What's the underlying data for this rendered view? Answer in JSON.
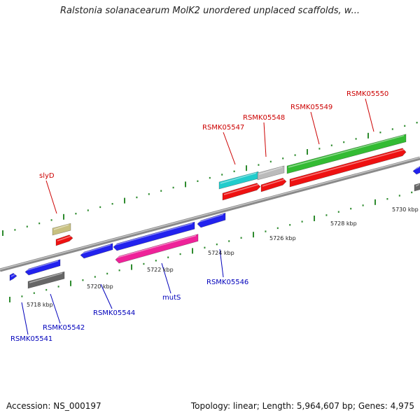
{
  "title": "Ralstonia solanacearum MolK2 unordered unplaced scaffolds, w...",
  "colors": {
    "backbone": "#8a8a8a",
    "tick": "#2e8b2e",
    "red_label": "#cc0000",
    "blue_label": "#0000bb",
    "blue": "#2222ee",
    "red": "#ee1111",
    "green": "#33bb33",
    "cyan": "#22cccc",
    "silver": "#bbbbbb",
    "khaki": "#c8c080",
    "gray": "#666666",
    "pink": "#ee2299"
  },
  "scale_labels": [
    "5718 kbp",
    "5720 kbp",
    "5722 kbp",
    "5724 kbp",
    "5726 kbp",
    "5728 kbp",
    "5730 kbp"
  ],
  "gene_labels": [
    {
      "text": "slyD",
      "color": "red"
    },
    {
      "text": "RSMK05547",
      "color": "red"
    },
    {
      "text": "RSMK05548",
      "color": "red"
    },
    {
      "text": "RSMK05549",
      "color": "red"
    },
    {
      "text": "RSMK05550",
      "color": "red"
    },
    {
      "text": "RSMK05541",
      "color": "blue"
    },
    {
      "text": "RSMK05542",
      "color": "blue"
    },
    {
      "text": "RSMK05544",
      "color": "blue"
    },
    {
      "text": "mutS",
      "color": "blue"
    },
    {
      "text": "RSMK05546",
      "color": "blue"
    }
  ],
  "footer": {
    "accession": "Accession: NS_000197",
    "summary": "Topology: linear; Length: 5,964,607 bp; Genes: 4,975"
  }
}
